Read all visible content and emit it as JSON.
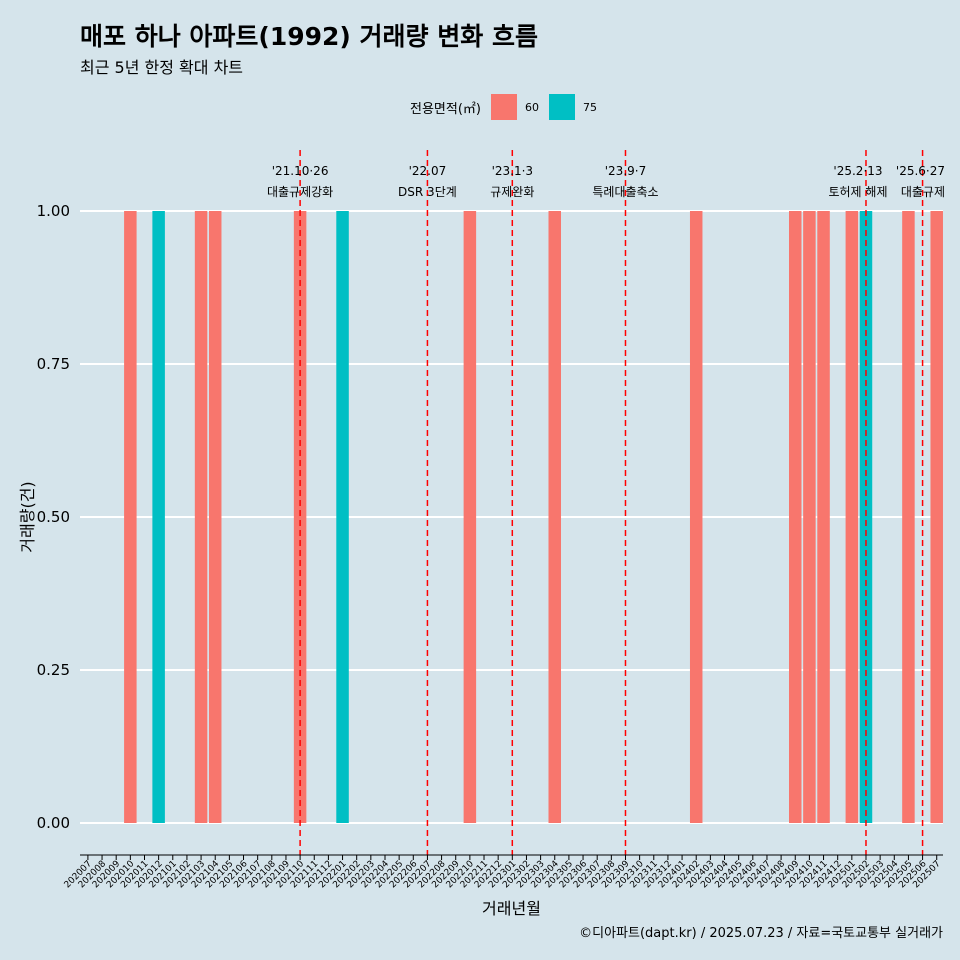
{
  "title": "매포 하나 아파트(1992) 거래량 변화 흐름",
  "subtitle": "최근 5년 한정 확대 차트",
  "caption": "©디아파트(dapt.kr) / 2025.07.23 / 자료=국토교통부 실거래가",
  "legend": {
    "title": "전용면적(㎡)",
    "items": [
      {
        "label": "60",
        "color": "#f8766d"
      },
      {
        "label": "75",
        "color": "#00bfc4"
      }
    ]
  },
  "chart_data": {
    "type": "bar",
    "xlabel": "거래년월",
    "ylabel": "거래량(건)",
    "ylim": [
      0,
      1
    ],
    "yticks": [
      "0.00",
      "0.25",
      "0.50",
      "0.75",
      "1.00"
    ],
    "categories": [
      "202007",
      "202008",
      "202009",
      "202010",
      "202011",
      "202012",
      "202101",
      "202102",
      "202103",
      "202104",
      "202105",
      "202106",
      "202107",
      "202108",
      "202109",
      "202110",
      "202111",
      "202112",
      "202201",
      "202202",
      "202203",
      "202204",
      "202205",
      "202206",
      "202207",
      "202208",
      "202209",
      "202210",
      "202211",
      "202212",
      "202301",
      "202302",
      "202303",
      "202304",
      "202305",
      "202306",
      "202307",
      "202308",
      "202309",
      "202310",
      "202311",
      "202312",
      "202401",
      "202402",
      "202403",
      "202404",
      "202405",
      "202406",
      "202407",
      "202408",
      "202409",
      "202410",
      "202411",
      "202412",
      "202501",
      "202502",
      "202503",
      "202504",
      "202505",
      "202506",
      "202507"
    ],
    "series": [
      {
        "name": "60",
        "color": "#f8766d",
        "values": [
          0,
          0,
          0,
          1,
          0,
          0,
          0,
          0,
          1,
          1,
          0,
          0,
          0,
          0,
          0,
          1,
          0,
          0,
          0,
          0,
          0,
          0,
          0,
          0,
          0,
          0,
          0,
          1,
          0,
          0,
          0,
          0,
          0,
          1,
          0,
          0,
          0,
          0,
          0,
          0,
          0,
          0,
          0,
          1,
          0,
          0,
          0,
          0,
          0,
          0,
          1,
          1,
          1,
          0,
          1,
          0,
          0,
          0,
          1,
          0,
          1
        ]
      },
      {
        "name": "75",
        "color": "#00bfc4",
        "values": [
          0,
          0,
          0,
          0,
          0,
          1,
          0,
          0,
          0,
          0,
          0,
          0,
          0,
          0,
          0,
          0,
          0,
          0,
          1,
          0,
          0,
          0,
          0,
          0,
          0,
          0,
          0,
          0,
          0,
          0,
          0,
          0,
          0,
          0,
          0,
          0,
          0,
          0,
          0,
          0,
          0,
          0,
          0,
          0,
          0,
          0,
          0,
          0,
          0,
          0,
          0,
          0,
          0,
          0,
          0,
          1,
          0,
          0,
          0,
          0,
          0
        ]
      }
    ],
    "grid": true,
    "annotations": [
      {
        "date_label": "'21.10·26",
        "text": "대출규제강화",
        "at": "202110"
      },
      {
        "date_label": "'22.07",
        "text": "DSR 3단계",
        "at": "202207"
      },
      {
        "date_label": "'23.1·3",
        "text": "규제완화",
        "at": "202301"
      },
      {
        "date_label": "'23.9·7",
        "text": "특례대출축소",
        "at": "202309"
      },
      {
        "date_label": "'25.2·13",
        "text": "토허제 해제",
        "at": "202502"
      },
      {
        "date_label": "'25.6·27",
        "text": "대출규제",
        "at": "202506"
      }
    ]
  }
}
